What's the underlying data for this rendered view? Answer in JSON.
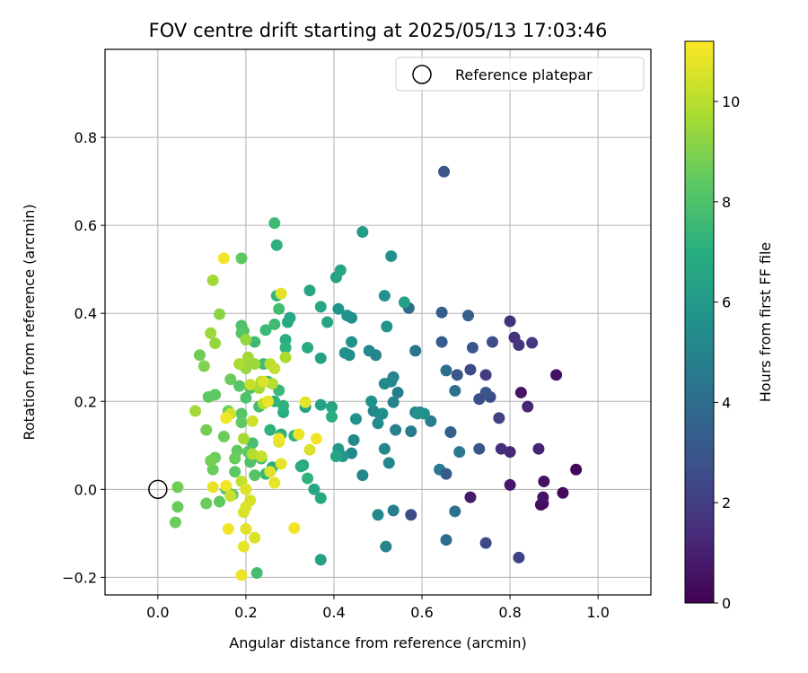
{
  "chart_data": {
    "type": "scatter",
    "title": "FOV centre drift starting at 2025/05/13 17:03:46",
    "xlabel": "Angular distance from reference (arcmin)",
    "ylabel": "Rotation from reference (arcmin)",
    "colorbar_label": "Hours from first FF file",
    "colormap": "viridis",
    "xlim": [
      -0.12,
      1.12
    ],
    "ylim": [
      -0.24,
      1.0
    ],
    "clim": [
      0,
      11.2
    ],
    "xticks": [
      "0.0",
      "0.2",
      "0.4",
      "0.6",
      "0.8",
      "1.0"
    ],
    "yticks": [
      "−0.2",
      "0.0",
      "0.2",
      "0.4",
      "0.6",
      "0.8"
    ],
    "colorbar_ticks": [
      "0",
      "2",
      "4",
      "6",
      "8",
      "10"
    ],
    "grid": true,
    "legend": {
      "position": "top-right",
      "label": "Reference platepar"
    },
    "reference_point": {
      "x": 0.0,
      "y": 0.0
    },
    "points": [
      [
        0.95,
        0.045,
        0.2
      ],
      [
        0.92,
        -0.008,
        0.35
      ],
      [
        0.905,
        0.26,
        0.5
      ],
      [
        0.87,
        -0.035,
        0.3
      ],
      [
        0.875,
        -0.032,
        0.4
      ],
      [
        0.875,
        -0.018,
        0.6
      ],
      [
        0.877,
        0.018,
        0.5
      ],
      [
        0.825,
        0.22,
        0.6
      ],
      [
        0.8,
        0.01,
        0.7
      ],
      [
        0.71,
        -0.018,
        0.8
      ],
      [
        0.865,
        0.092,
        1.1
      ],
      [
        0.84,
        0.188,
        1.2
      ],
      [
        0.8,
        0.085,
        1.3
      ],
      [
        0.78,
        0.092,
        1.5
      ],
      [
        0.81,
        0.345,
        1.5
      ],
      [
        0.8,
        0.382,
        1.6
      ],
      [
        0.82,
        0.328,
        1.7
      ],
      [
        0.85,
        0.333,
        1.8
      ],
      [
        0.82,
        -0.155,
        2.2
      ],
      [
        0.745,
        -0.122,
        2.5
      ],
      [
        0.745,
        0.26,
        2.0
      ],
      [
        0.775,
        0.162,
        2.2
      ],
      [
        0.755,
        0.21,
        2.6
      ],
      [
        0.745,
        0.22,
        3.0
      ],
      [
        0.73,
        0.205,
        2.7
      ],
      [
        0.76,
        0.335,
        2.6
      ],
      [
        0.715,
        0.322,
        3.0
      ],
      [
        0.73,
        0.092,
        3.0
      ],
      [
        0.71,
        0.272,
        2.5
      ],
      [
        0.68,
        0.26,
        3.0
      ],
      [
        0.645,
        0.335,
        3.2
      ],
      [
        0.645,
        0.402,
        3.3
      ],
      [
        0.705,
        0.395,
        3.4
      ],
      [
        0.65,
        0.722,
        3.0
      ],
      [
        0.575,
        -0.058,
        2.6
      ],
      [
        0.675,
        -0.05,
        4.2
      ],
      [
        0.655,
        -0.115,
        4.0
      ],
      [
        0.665,
        0.13,
        3.3
      ],
      [
        0.665,
        0.13,
        3.5
      ],
      [
        0.64,
        0.045,
        4.5
      ],
      [
        0.655,
        0.035,
        3.2
      ],
      [
        0.675,
        0.224,
        4.2
      ],
      [
        0.655,
        0.27,
        4.0
      ],
      [
        0.685,
        0.085,
        4.6
      ],
      [
        0.62,
        0.155,
        4.7
      ],
      [
        0.595,
        0.175,
        4.5
      ],
      [
        0.585,
        0.175,
        4.8
      ],
      [
        0.585,
        0.315,
        4.4
      ],
      [
        0.57,
        0.412,
        3.9
      ],
      [
        0.575,
        0.132,
        4.6
      ],
      [
        0.545,
        0.22,
        4.7
      ],
      [
        0.54,
        0.135,
        4.9
      ],
      [
        0.535,
        0.198,
        4.9
      ],
      [
        0.535,
        0.255,
        5.0
      ],
      [
        0.53,
        0.245,
        5.2
      ],
      [
        0.525,
        0.06,
        5.1
      ],
      [
        0.535,
        -0.048,
        4.8
      ],
      [
        0.515,
        0.092,
        5.2
      ],
      [
        0.518,
        -0.13,
        5.0
      ],
      [
        0.505,
        0.17,
        5.2
      ],
      [
        0.515,
        0.24,
        5.3
      ],
      [
        0.51,
        0.172,
        5.6
      ],
      [
        0.5,
        -0.058,
        5.2
      ],
      [
        0.5,
        0.15,
        5.4
      ],
      [
        0.495,
        0.305,
        5.0
      ],
      [
        0.49,
        0.178,
        5.3
      ],
      [
        0.485,
        0.2,
        5.6
      ],
      [
        0.48,
        0.315,
        5.2
      ],
      [
        0.465,
        0.032,
        5.0
      ],
      [
        0.45,
        0.16,
        5.6
      ],
      [
        0.445,
        0.112,
        5.2
      ],
      [
        0.44,
        0.082,
        5.2
      ],
      [
        0.44,
        0.335,
        5.6
      ],
      [
        0.435,
        0.305,
        5.5
      ],
      [
        0.44,
        0.39,
        5.6
      ],
      [
        0.425,
        0.31,
        5.6
      ],
      [
        0.43,
        0.395,
        5.7
      ],
      [
        0.41,
        0.41,
        5.8
      ],
      [
        0.41,
        0.092,
        6.0
      ],
      [
        0.42,
        0.075,
        6.0
      ],
      [
        0.52,
        0.37,
        5.7
      ],
      [
        0.53,
        0.53,
        5.6
      ],
      [
        0.515,
        0.44,
        5.7
      ],
      [
        0.59,
        0.172,
        5.7
      ],
      [
        0.605,
        0.172,
        5.6
      ],
      [
        0.465,
        0.585,
        6.2
      ],
      [
        0.56,
        0.425,
        6.4
      ],
      [
        0.405,
        0.482,
        6.4
      ],
      [
        0.415,
        0.498,
        6.6
      ],
      [
        0.405,
        0.075,
        6.5
      ],
      [
        0.395,
        0.187,
        6.6
      ],
      [
        0.395,
        0.165,
        7.0
      ],
      [
        0.37,
        0.298,
        6.4
      ],
      [
        0.37,
        -0.02,
        6.7
      ],
      [
        0.37,
        0.192,
        6.4
      ],
      [
        0.37,
        -0.16,
        6.4
      ],
      [
        0.37,
        0.415,
        6.6
      ],
      [
        0.385,
        0.38,
        6.5
      ],
      [
        0.355,
        0.0,
        6.6
      ],
      [
        0.345,
        0.452,
        6.5
      ],
      [
        0.34,
        0.322,
        6.8
      ],
      [
        0.34,
        0.025,
        7.2
      ],
      [
        0.335,
        0.187,
        6.4
      ],
      [
        0.33,
        0.055,
        6.4
      ],
      [
        0.325,
        0.052,
        7.0
      ],
      [
        0.31,
        0.122,
        7.2
      ],
      [
        0.3,
        0.39,
        6.6
      ],
      [
        0.295,
        0.38,
        6.8
      ],
      [
        0.29,
        0.34,
        7.0
      ],
      [
        0.29,
        0.322,
        7.2
      ],
      [
        0.285,
        0.175,
        7.0
      ],
      [
        0.285,
        0.19,
        7.2
      ],
      [
        0.28,
        0.125,
        7.2
      ],
      [
        0.275,
        0.225,
        7.5
      ],
      [
        0.27,
        0.555,
        7.1
      ],
      [
        0.27,
        0.44,
        7.3
      ],
      [
        0.275,
        0.41,
        7.7
      ],
      [
        0.265,
        0.605,
        7.6
      ],
      [
        0.265,
        0.375,
        7.6
      ],
      [
        0.265,
        0.2,
        7.2
      ],
      [
        0.26,
        0.05,
        7.0
      ],
      [
        0.255,
        0.135,
        7.2
      ],
      [
        0.25,
        0.245,
        7.4
      ],
      [
        0.245,
        0.035,
        7.5
      ],
      [
        0.245,
        0.362,
        7.5
      ],
      [
        0.24,
        0.285,
        7.6
      ],
      [
        0.235,
        0.07,
        7.8
      ],
      [
        0.23,
        0.188,
        7.8
      ],
      [
        0.225,
        -0.19,
        7.8
      ],
      [
        0.22,
        0.032,
        8.2
      ],
      [
        0.22,
        0.335,
        7.6
      ],
      [
        0.215,
        0.105,
        7.8
      ],
      [
        0.21,
        0.23,
        8.0
      ],
      [
        0.21,
        0.062,
        8.0
      ],
      [
        0.205,
        0.085,
        8.3
      ],
      [
        0.2,
        0.208,
        8.0
      ],
      [
        0.195,
        0.36,
        8.2
      ],
      [
        0.19,
        0.372,
        8.0
      ],
      [
        0.19,
        0.355,
        8.2
      ],
      [
        0.19,
        0.172,
        8.2
      ],
      [
        0.19,
        0.152,
        8.4
      ],
      [
        0.185,
        0.235,
        8.2
      ],
      [
        0.18,
        0.088,
        8.4
      ],
      [
        0.175,
        0.07,
        8.6
      ],
      [
        0.175,
        0.04,
        8.3
      ],
      [
        0.17,
        -0.012,
        8.4
      ],
      [
        0.165,
        0.25,
        8.6
      ],
      [
        0.16,
        0.178,
        8.6
      ],
      [
        0.155,
        0.0,
        8.2
      ],
      [
        0.15,
        0.12,
        8.6
      ],
      [
        0.14,
        -0.028,
        8.4
      ],
      [
        0.13,
        0.072,
        8.6
      ],
      [
        0.13,
        0.215,
        8.4
      ],
      [
        0.125,
        0.045,
        8.6
      ],
      [
        0.12,
        0.065,
        8.8
      ],
      [
        0.115,
        0.21,
        8.4
      ],
      [
        0.11,
        -0.032,
        8.6
      ],
      [
        0.11,
        0.135,
        8.8
      ],
      [
        0.105,
        0.28,
        9.0
      ],
      [
        0.095,
        0.305,
        8.7
      ],
      [
        0.045,
        0.005,
        8.7
      ],
      [
        0.045,
        -0.04,
        8.6
      ],
      [
        0.04,
        -0.075,
        8.6
      ],
      [
        0.19,
        0.525,
        8.4
      ],
      [
        0.13,
        0.332,
        9.4
      ],
      [
        0.14,
        0.398,
        9.2
      ],
      [
        0.12,
        0.355,
        9.5
      ],
      [
        0.085,
        0.178,
        9.6
      ],
      [
        0.125,
        0.475,
        9.6
      ],
      [
        0.2,
        0.275,
        9.4
      ],
      [
        0.185,
        0.285,
        9.8
      ],
      [
        0.2,
        0.34,
        9.4
      ],
      [
        0.205,
        0.3,
        9.6
      ],
      [
        0.22,
        0.285,
        9.5
      ],
      [
        0.23,
        0.23,
        9.6
      ],
      [
        0.235,
        0.245,
        9.8
      ],
      [
        0.24,
        0.195,
        10.0
      ],
      [
        0.255,
        0.285,
        10.0
      ],
      [
        0.265,
        0.275,
        10.2
      ],
      [
        0.26,
        0.24,
        9.9
      ],
      [
        0.21,
        0.238,
        10.2
      ],
      [
        0.215,
        0.08,
        9.9
      ],
      [
        0.195,
        0.115,
        9.6
      ],
      [
        0.19,
        0.018,
        10.2
      ],
      [
        0.165,
        0.172,
        10.4
      ],
      [
        0.215,
        0.155,
        10.4
      ],
      [
        0.165,
        -0.015,
        10.3
      ],
      [
        0.2,
        0.0,
        10.6
      ],
      [
        0.21,
        -0.025,
        10.5
      ],
      [
        0.2,
        -0.04,
        10.6
      ],
      [
        0.195,
        -0.052,
        10.6
      ],
      [
        0.2,
        -0.09,
        10.7
      ],
      [
        0.22,
        -0.11,
        10.6
      ],
      [
        0.195,
        -0.13,
        10.8
      ],
      [
        0.19,
        -0.195,
        10.9
      ],
      [
        0.16,
        -0.09,
        11.0
      ],
      [
        0.155,
        0.162,
        11.0
      ],
      [
        0.15,
        0.525,
        11.0
      ],
      [
        0.155,
        0.008,
        11.0
      ],
      [
        0.125,
        0.005,
        10.8
      ],
      [
        0.28,
        0.445,
        10.7
      ],
      [
        0.275,
        0.108,
        10.6
      ],
      [
        0.275,
        0.115,
        10.9
      ],
      [
        0.28,
        0.058,
        10.8
      ],
      [
        0.24,
        0.245,
        10.6
      ],
      [
        0.255,
        0.04,
        10.7
      ],
      [
        0.265,
        0.015,
        10.8
      ],
      [
        0.25,
        0.2,
        10.9
      ],
      [
        0.345,
        0.09,
        10.6
      ],
      [
        0.335,
        0.198,
        10.8
      ],
      [
        0.32,
        0.125,
        10.9
      ],
      [
        0.36,
        0.115,
        11.0
      ],
      [
        0.31,
        -0.088,
        11.0
      ],
      [
        0.235,
        0.075,
        10.2
      ],
      [
        0.29,
        0.3,
        9.8
      ]
    ]
  }
}
